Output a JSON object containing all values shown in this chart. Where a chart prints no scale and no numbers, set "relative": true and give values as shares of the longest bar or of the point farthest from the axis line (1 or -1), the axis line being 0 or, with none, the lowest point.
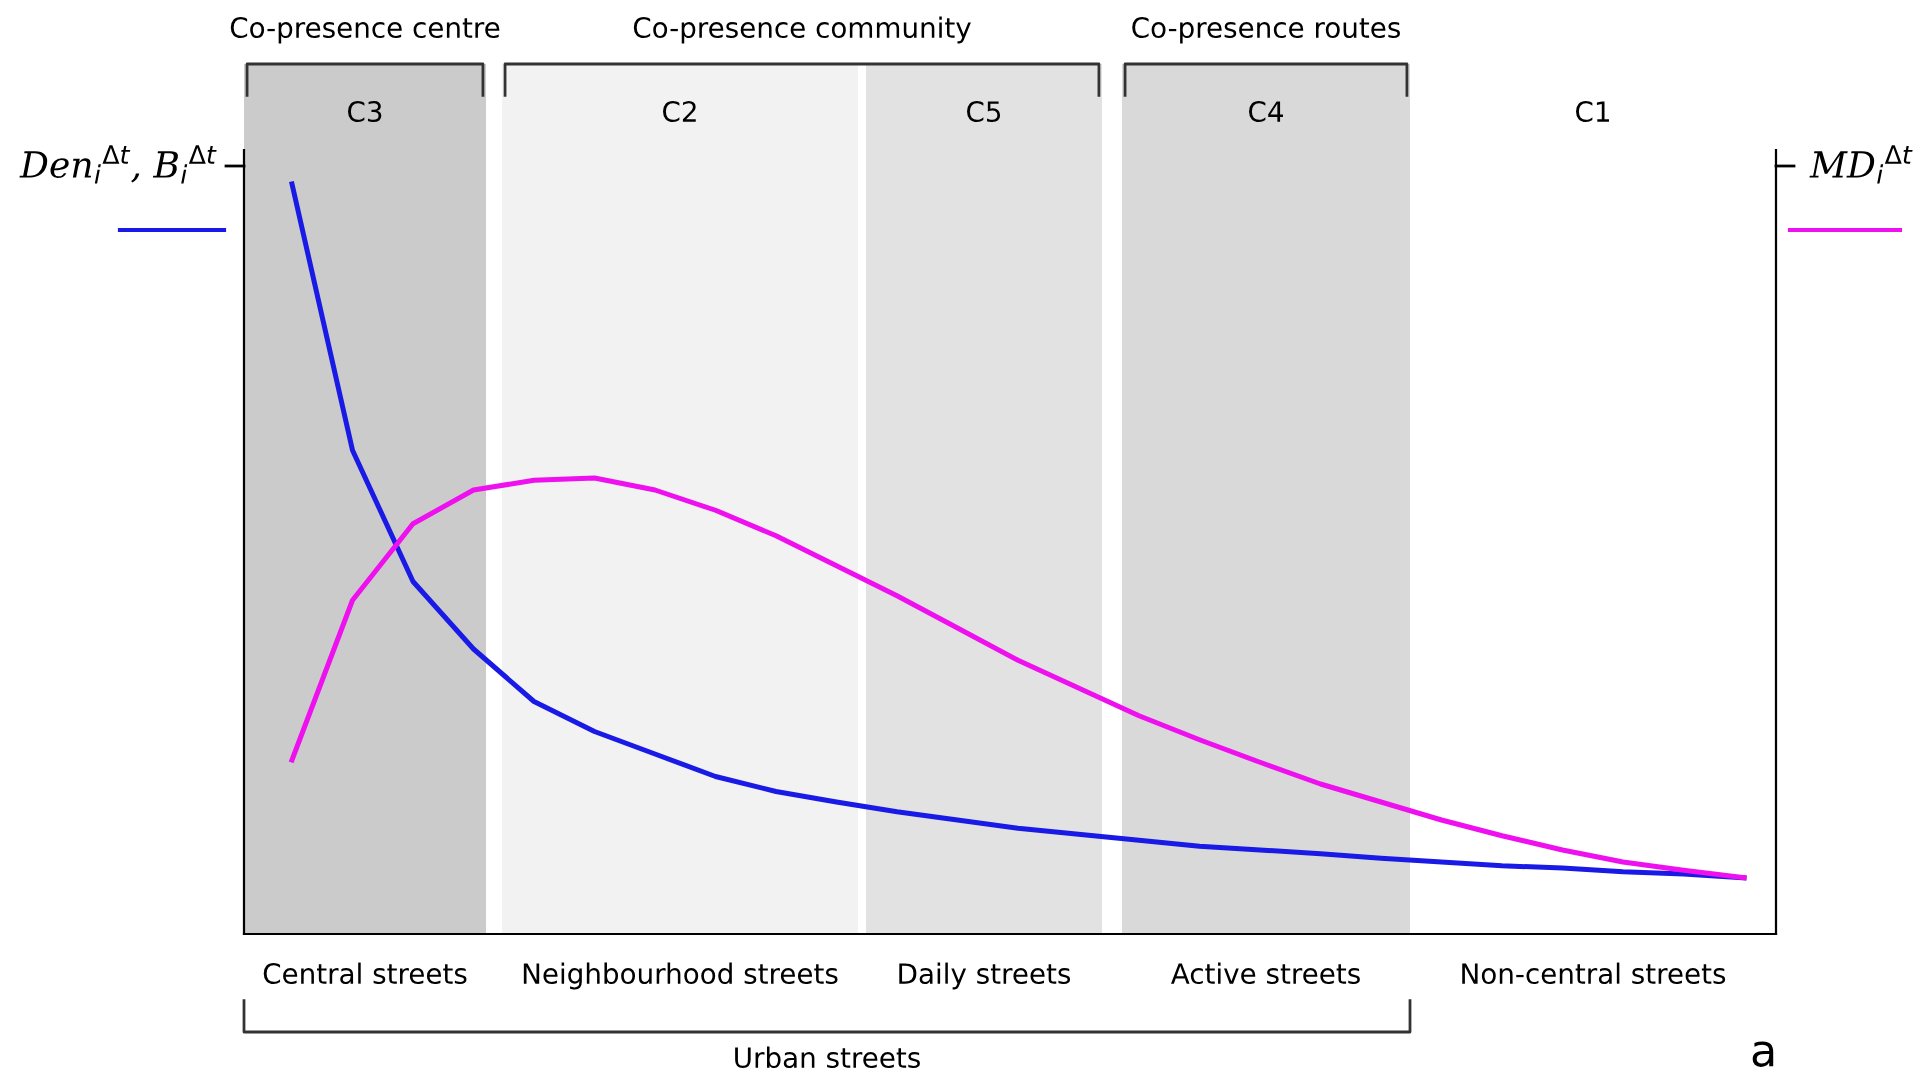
{
  "chart_data": {
    "type": "line",
    "relative": true,
    "ylabel": "Den$_{i}$$^{Δt}$, B$_{i}$$^{Δt}$",
    "y2label": "MD$_{i}$$^{Δt}$",
    "categories": [
      null,
      null,
      null,
      null,
      null,
      null,
      null,
      null,
      null,
      null,
      null,
      null,
      null,
      null,
      null,
      null,
      null,
      null,
      null,
      null,
      null,
      null,
      null,
      null,
      null
    ],
    "series": [
      {
        "color": "#1a1ae6",
        "values": [
          1.0,
          0.645,
          0.47,
          0.38,
          0.31,
          0.27,
          0.24,
          0.21,
          0.19,
          0.176,
          0.163,
          0.152,
          0.141,
          0.133,
          0.125,
          0.117,
          0.112,
          0.107,
          0.101,
          0.096,
          0.091,
          0.088,
          0.083,
          0.08,
          0.075
        ]
      },
      {
        "color": "#ee10ee",
        "values": [
          0.232,
          0.445,
          0.547,
          0.592,
          0.605,
          0.608,
          0.592,
          0.565,
          0.531,
          0.491,
          0.451,
          0.408,
          0.365,
          0.328,
          0.291,
          0.259,
          0.229,
          0.2,
          0.176,
          0.152,
          0.131,
          0.112,
          0.096,
          0.085,
          0.075
        ]
      }
    ],
    "annotations": [
      "Co-presence centre",
      "Co-presence community",
      "Co-presence routes",
      "C3",
      "C2",
      "C5",
      "C4",
      "C1",
      "Central streets",
      "Neighbourhood streets",
      "Daily streets",
      "Active streets",
      "Non-central streets",
      "Urban streets",
      "a"
    ]
  }
}
